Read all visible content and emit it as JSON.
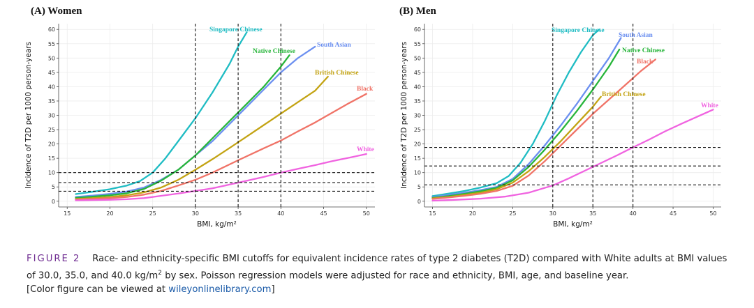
{
  "colors": {
    "Singapore Chinese": "#1fbcc3",
    "South Asian": "#6b8ff0",
    "Native Chinese": "#27b53a",
    "British Chinese": "#c3a313",
    "Black": "#f07367",
    "White": "#f063e0"
  },
  "caption": {
    "label": "FIGURE 2",
    "text_before_sup": "Race- and ethnicity-specific BMI cutoffs for equivalent incidence rates of type 2 diabetes (T2D) compared with White adults at BMI values of 30.0, 35.0, and 40.0 kg/m",
    "sup": "2",
    "text_after_sup": " by sex. Poisson regression models were adjusted for race and ethnicity, BMI, age, and baseline year.",
    "line3_prefix": "[Color figure can be viewed at ",
    "link": "wileyonlinelibrary.com",
    "line3_suffix": "]"
  },
  "chart_data": [
    {
      "type": "line",
      "title": "(A) Women",
      "xlabel": "BMI, kg/m²",
      "ylabel": "Incidence of T2D per 1000 person-years",
      "xlim": [
        14,
        51
      ],
      "ylim": [
        -2,
        62
      ],
      "xticks": [
        15,
        20,
        25,
        30,
        35,
        40,
        45,
        50
      ],
      "yticks": [
        0,
        5,
        10,
        15,
        20,
        25,
        30,
        35,
        40,
        45,
        50,
        55,
        60
      ],
      "vlines": [
        30,
        35,
        40
      ],
      "hlines": [
        3.5,
        6.5,
        10
      ],
      "series": [
        {
          "name": "Singapore Chinese",
          "x": [
            16,
            18,
            20,
            22,
            23.5,
            25,
            26.5,
            28,
            30,
            32,
            34,
            35,
            36
          ],
          "y": [
            2.5,
            3.3,
            4.2,
            5.5,
            7,
            10,
            15,
            21,
            29,
            38,
            48,
            54,
            59
          ]
        },
        {
          "name": "South Asian",
          "x": [
            16,
            18,
            20,
            22,
            24,
            26,
            28,
            30,
            32,
            34,
            36,
            38,
            40,
            42,
            44
          ],
          "y": [
            1.5,
            2,
            2.6,
            3.4,
            4.8,
            7.5,
            11,
            16,
            21,
            27,
            33,
            39,
            45,
            50,
            54
          ]
        },
        {
          "name": "Native Chinese",
          "x": [
            16,
            18,
            20,
            22,
            24,
            26,
            28,
            30,
            32,
            34,
            36,
            38,
            40,
            41
          ],
          "y": [
            1.2,
            1.6,
            2.1,
            2.8,
            4.3,
            7.2,
            11,
            16,
            22,
            28,
            34,
            40,
            47,
            51
          ]
        },
        {
          "name": "British Chinese",
          "x": [
            16,
            18,
            20,
            22,
            24,
            26,
            28,
            30,
            32,
            34,
            36,
            38,
            40,
            42,
            44,
            45.5
          ],
          "y": [
            0.8,
            1.1,
            1.5,
            2.1,
            3.1,
            4.8,
            7.5,
            11,
            14.7,
            18.6,
            22.6,
            26.6,
            30.6,
            34.6,
            38.6,
            43.5
          ]
        },
        {
          "name": "Black",
          "x": [
            16,
            18,
            20,
            22,
            24,
            26,
            28,
            30,
            32,
            35,
            38,
            40,
            42,
            44,
            46,
            48,
            50
          ],
          "y": [
            0.6,
            0.8,
            1.1,
            1.5,
            2.3,
            3.6,
            5.5,
            7.5,
            10,
            14.3,
            18.5,
            21.2,
            24.4,
            27.5,
            30.9,
            34.3,
            37.5
          ]
        },
        {
          "name": "White",
          "x": [
            16,
            18,
            20,
            22,
            24,
            26,
            28,
            30,
            32,
            35,
            38,
            40,
            42,
            44,
            46,
            48,
            50
          ],
          "y": [
            0.3,
            0.4,
            0.5,
            0.7,
            1.1,
            1.9,
            2.7,
            3.6,
            4.5,
            6.5,
            8.5,
            10,
            11.3,
            12.6,
            14,
            15.2,
            16.5
          ]
        }
      ]
    },
    {
      "type": "line",
      "title": "(B) Men",
      "xlabel": "BMI, kg/m²",
      "ylabel": "Incidence of T2D per 1000 person-years",
      "xlim": [
        14,
        51
      ],
      "ylim": [
        -2,
        62
      ],
      "xticks": [
        15,
        20,
        25,
        30,
        35,
        40,
        45,
        50
      ],
      "yticks": [
        0,
        5,
        10,
        15,
        20,
        25,
        30,
        35,
        40,
        45,
        50,
        55,
        60
      ],
      "vlines": [
        30,
        35,
        40
      ],
      "hlines": [
        5.7,
        12.3,
        18.8
      ],
      "series": [
        {
          "name": "Singapore Chinese",
          "x": [
            15,
            17,
            19,
            21,
            23,
            24.5,
            26,
            27.5,
            29,
            30.5,
            32,
            33.5,
            35,
            35.8
          ],
          "y": [
            1.8,
            2.7,
            3.6,
            4.8,
            6.3,
            8.8,
            13.5,
            20,
            28,
            37,
            45,
            52,
            58,
            60
          ]
        },
        {
          "name": "South Asian",
          "x": [
            15,
            17,
            19,
            21,
            23,
            25,
            27,
            29,
            31,
            33,
            35,
            37,
            38.5
          ],
          "y": [
            1.5,
            2.2,
            3,
            3.9,
            5,
            7.8,
            13,
            19.5,
            26.5,
            34,
            42,
            50,
            57
          ]
        },
        {
          "name": "Native Chinese",
          "x": [
            15,
            17,
            19,
            21,
            23,
            25,
            27,
            29,
            31,
            33,
            35,
            37,
            38.3
          ],
          "y": [
            1.2,
            1.8,
            2.6,
            3.5,
            4.7,
            7.3,
            12,
            18,
            24.5,
            31.5,
            39,
            47,
            53
          ]
        },
        {
          "name": "British Chinese",
          "x": [
            15,
            17,
            19,
            21,
            23,
            25,
            27,
            29,
            31,
            33,
            35,
            36
          ],
          "y": [
            1.0,
            1.5,
            2.2,
            3,
            4.2,
            6.5,
            10.5,
            15.5,
            21,
            27,
            33,
            36.5
          ]
        },
        {
          "name": "Black",
          "x": [
            15,
            17,
            19,
            21,
            23,
            25,
            27,
            29,
            31,
            33,
            35,
            37,
            39,
            41,
            42.8
          ],
          "y": [
            0.8,
            1.3,
            1.9,
            2.6,
            3.6,
            5.4,
            9,
            14,
            19.5,
            25,
            30.5,
            35.5,
            40.5,
            45.5,
            49.5
          ]
        },
        {
          "name": "White",
          "x": [
            15,
            18,
            21,
            24,
            27,
            30,
            32,
            35,
            38,
            40,
            42,
            44,
            46,
            48,
            50
          ],
          "y": [
            0.2,
            0.5,
            0.9,
            1.6,
            3,
            5.5,
            8,
            12,
            16,
            18.8,
            21.5,
            24.4,
            27,
            29.5,
            32
          ]
        }
      ]
    }
  ]
}
